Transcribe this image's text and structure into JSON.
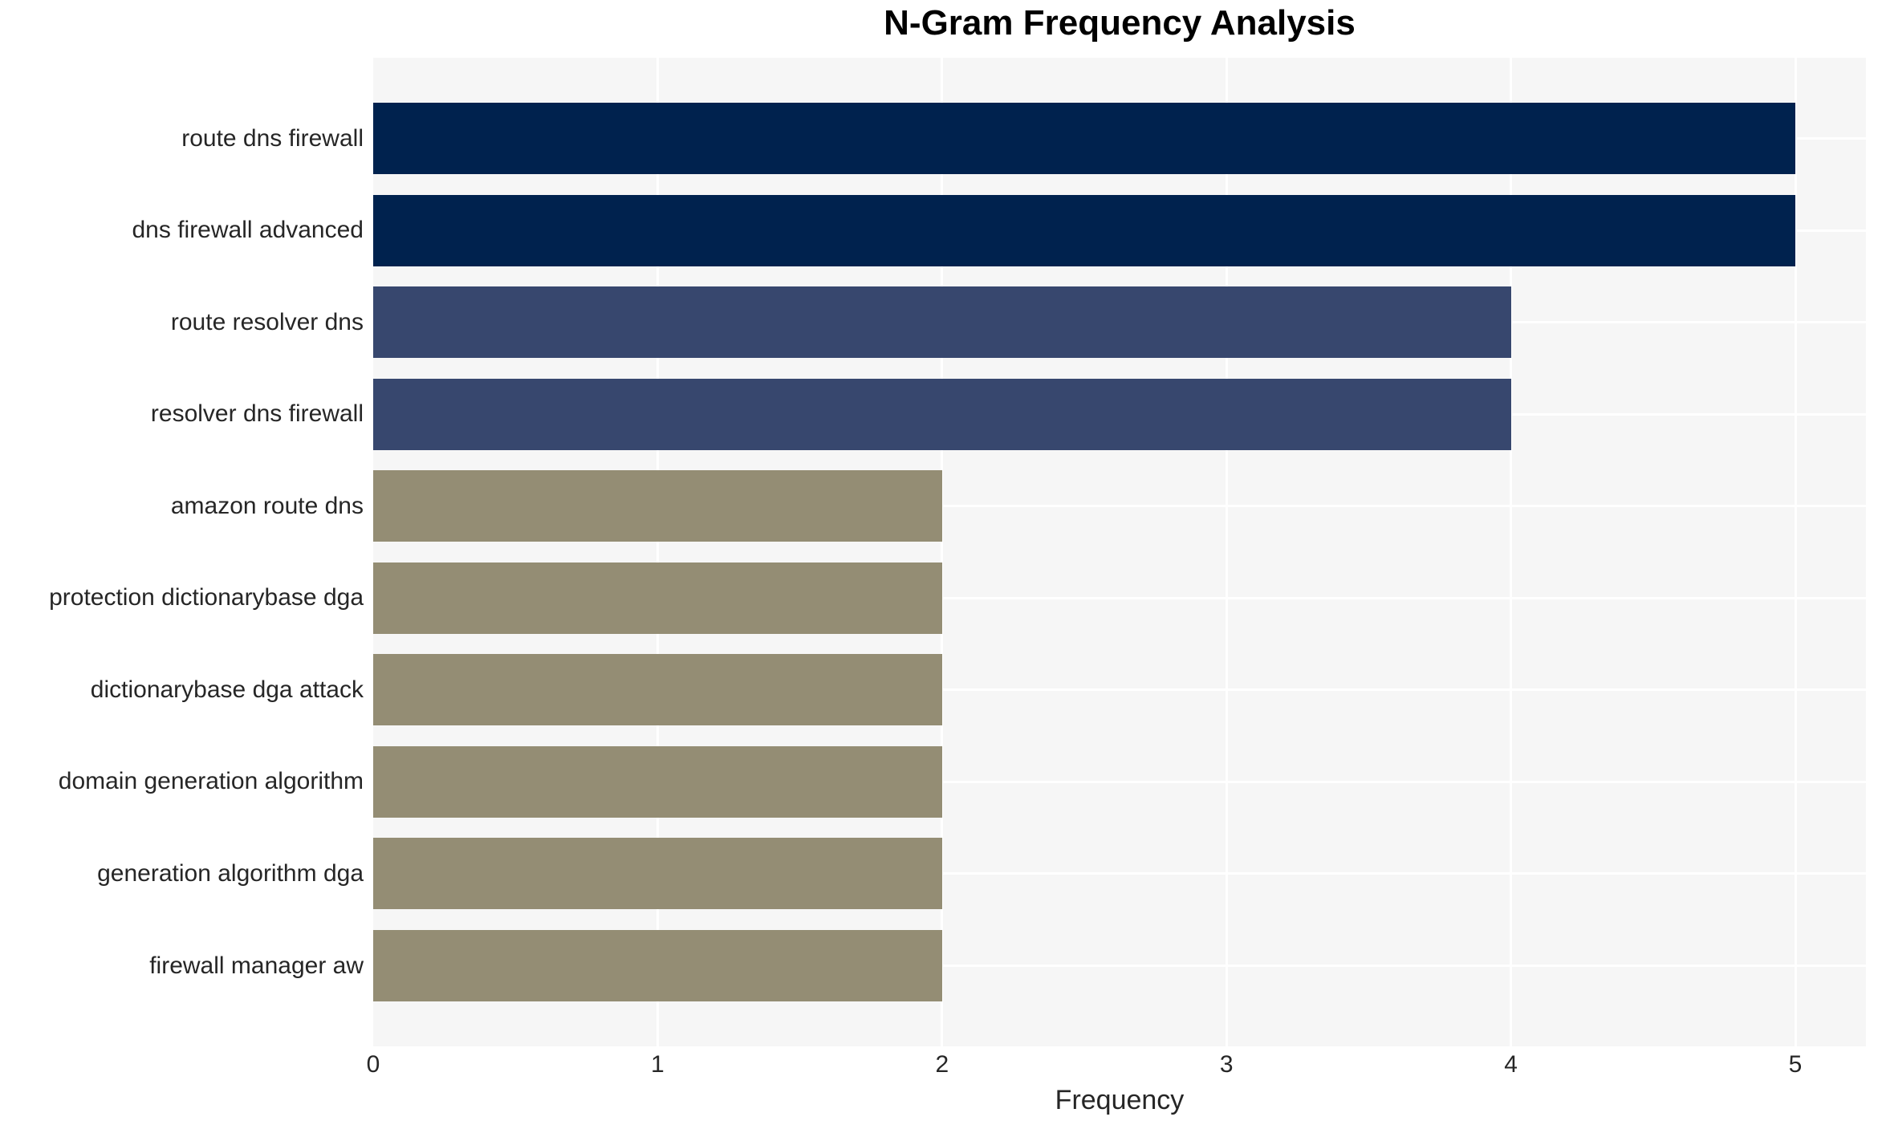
{
  "title": "N-Gram Frequency Analysis",
  "xlabel": "Frequency",
  "chart_data": {
    "type": "bar",
    "orientation": "horizontal",
    "title": "N-Gram Frequency Analysis",
    "xlabel": "Frequency",
    "ylabel": "",
    "categories": [
      "route dns firewall",
      "dns firewall advanced",
      "route resolver dns",
      "resolver dns firewall",
      "amazon route dns",
      "protection dictionarybase dga",
      "dictionarybase dga attack",
      "domain generation algorithm",
      "generation algorithm dga",
      "firewall manager aw"
    ],
    "values": [
      5,
      5,
      4,
      4,
      2,
      2,
      2,
      2,
      2,
      2
    ],
    "bar_colors": [
      "#00224E",
      "#00224E",
      "#37476E",
      "#37476E",
      "#948D74",
      "#948D74",
      "#948D74",
      "#948D74",
      "#948D74",
      "#948D74"
    ],
    "xticks": [
      "0",
      "1",
      "2",
      "3",
      "4",
      "5"
    ],
    "xtick_values": [
      0,
      1,
      2,
      3,
      4,
      5
    ],
    "xlim": [
      0,
      5.25
    ],
    "grid": true,
    "legend": false,
    "panel_background": "#F6F6F6",
    "gridline_color": "#FFFFFF"
  }
}
